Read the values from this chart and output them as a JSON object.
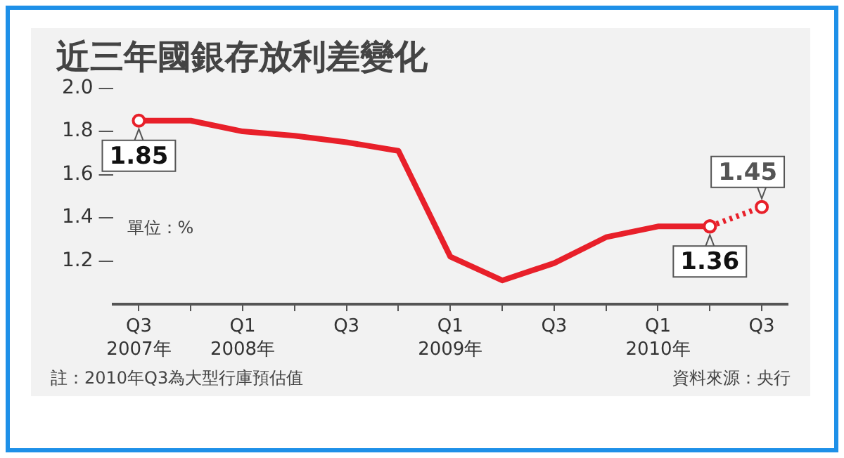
{
  "chart_data": {
    "type": "line",
    "title": "近三年國銀存放利差變化",
    "categories": [
      "Q3\n2007年",
      null,
      "Q1\n2008年",
      null,
      "Q3",
      null,
      "Q1\n2009年",
      null,
      "Q3",
      null,
      "Q1\n2010年",
      null,
      "Q3"
    ],
    "series": [
      {
        "color": "#e8202a",
        "values": [
          1.85,
          1.85,
          1.8,
          1.78,
          1.75,
          1.71,
          1.22,
          1.11,
          1.19,
          1.31,
          1.36,
          1.36,
          null
        ],
        "value_labels": [
          "1.85",
          null,
          null,
          null,
          null,
          null,
          null,
          null,
          null,
          null,
          null,
          "1.36",
          null
        ],
        "line_style": "solid"
      },
      {
        "color": "#e8202a",
        "values": [
          null,
          null,
          null,
          null,
          null,
          null,
          null,
          null,
          null,
          null,
          null,
          1.36,
          1.45
        ],
        "value_labels": [
          null,
          null,
          null,
          null,
          null,
          null,
          null,
          null,
          null,
          null,
          null,
          null,
          "1.45"
        ],
        "line_style": "dotted",
        "marker": "circle"
      }
    ],
    "ylim": [
      1.0,
      2.0
    ],
    "yticks": [
      1.2,
      1.4,
      1.6,
      1.8,
      {
        "value": 2.0,
        "label": "2.0"
      }
    ],
    "grid": false,
    "legend": false,
    "annotations": [
      "單位：%",
      "註：2010年Q3為大型行庫預估值",
      "資料來源：央行"
    ]
  }
}
